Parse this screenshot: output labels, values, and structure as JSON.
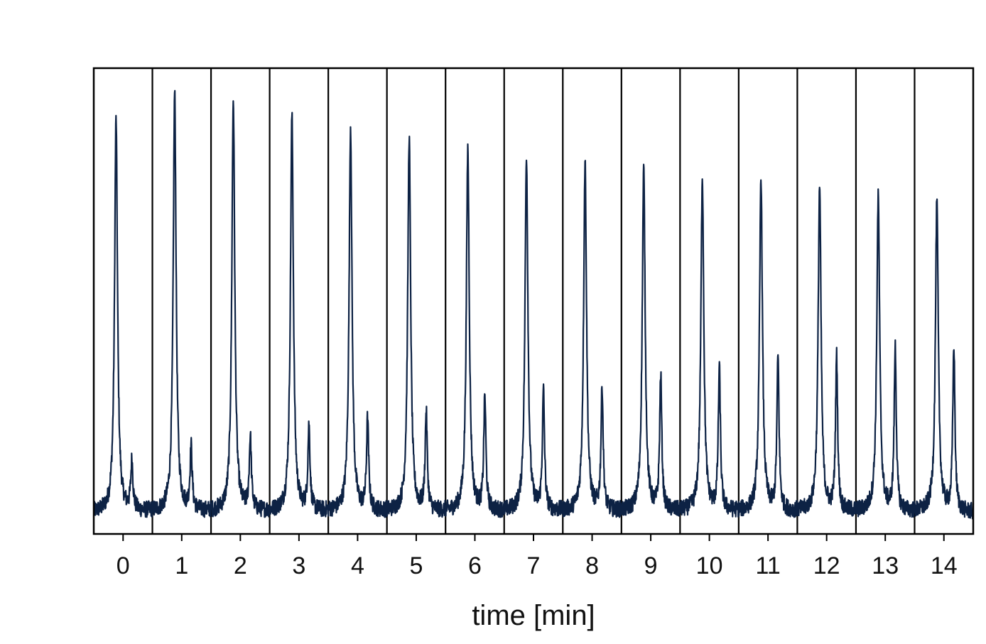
{
  "chart_data": {
    "type": "line",
    "title": "",
    "xlabel": "time [min]",
    "ylabel": "",
    "xlim": [
      -0.5,
      14.5
    ],
    "ylim": [
      0,
      1
    ],
    "grid": false,
    "y_ticks_shown": false,
    "x_ticks": [
      0,
      1,
      2,
      3,
      4,
      5,
      6,
      7,
      8,
      9,
      10,
      11,
      12,
      13,
      14
    ],
    "x_tick_labels": [
      "0",
      "1",
      "2",
      "3",
      "4",
      "5",
      "6",
      "7",
      "8",
      "9",
      "10",
      "11",
      "12",
      "13",
      "14"
    ],
    "separators": [
      0.5,
      1.5,
      2.5,
      3.5,
      4.5,
      5.5,
      6.5,
      7.5,
      8.5,
      9.5,
      10.5,
      11.5,
      12.5,
      13.5
    ],
    "line_color": "#0d2244",
    "baseline": 0.045,
    "noise_amplitude": 0.018,
    "peaks": [
      {
        "segment": 0,
        "main_x": -0.12,
        "main_height": 0.89,
        "minor_x": 0.15,
        "minor_height": 0.15
      },
      {
        "segment": 1,
        "main_x": 0.88,
        "main_height": 0.945,
        "minor_x": 1.16,
        "minor_height": 0.18
      },
      {
        "segment": 2,
        "main_x": 1.88,
        "main_height": 0.93,
        "minor_x": 2.17,
        "minor_height": 0.2
      },
      {
        "segment": 3,
        "main_x": 2.88,
        "main_height": 0.895,
        "minor_x": 3.17,
        "minor_height": 0.225
      },
      {
        "segment": 4,
        "main_x": 3.88,
        "main_height": 0.87,
        "minor_x": 4.17,
        "minor_height": 0.24
      },
      {
        "segment": 5,
        "main_x": 4.88,
        "main_height": 0.85,
        "minor_x": 5.17,
        "minor_height": 0.255
      },
      {
        "segment": 6,
        "main_x": 5.88,
        "main_height": 0.825,
        "minor_x": 6.17,
        "minor_height": 0.29
      },
      {
        "segment": 7,
        "main_x": 6.88,
        "main_height": 0.81,
        "minor_x": 7.17,
        "minor_height": 0.3
      },
      {
        "segment": 8,
        "main_x": 7.88,
        "main_height": 0.795,
        "minor_x": 8.17,
        "minor_height": 0.31
      },
      {
        "segment": 9,
        "main_x": 8.88,
        "main_height": 0.78,
        "minor_x": 9.17,
        "minor_height": 0.335
      },
      {
        "segment": 10,
        "main_x": 9.88,
        "main_height": 0.765,
        "minor_x": 10.17,
        "minor_height": 0.35
      },
      {
        "segment": 11,
        "main_x": 10.88,
        "main_height": 0.765,
        "minor_x": 11.17,
        "minor_height": 0.375
      },
      {
        "segment": 12,
        "main_x": 11.88,
        "main_height": 0.745,
        "minor_x": 12.17,
        "minor_height": 0.375
      },
      {
        "segment": 13,
        "main_x": 12.88,
        "main_height": 0.72,
        "minor_x": 13.17,
        "minor_height": 0.395
      },
      {
        "segment": 14,
        "main_x": 13.88,
        "main_height": 0.71,
        "minor_x": 14.17,
        "minor_height": 0.4
      }
    ]
  }
}
